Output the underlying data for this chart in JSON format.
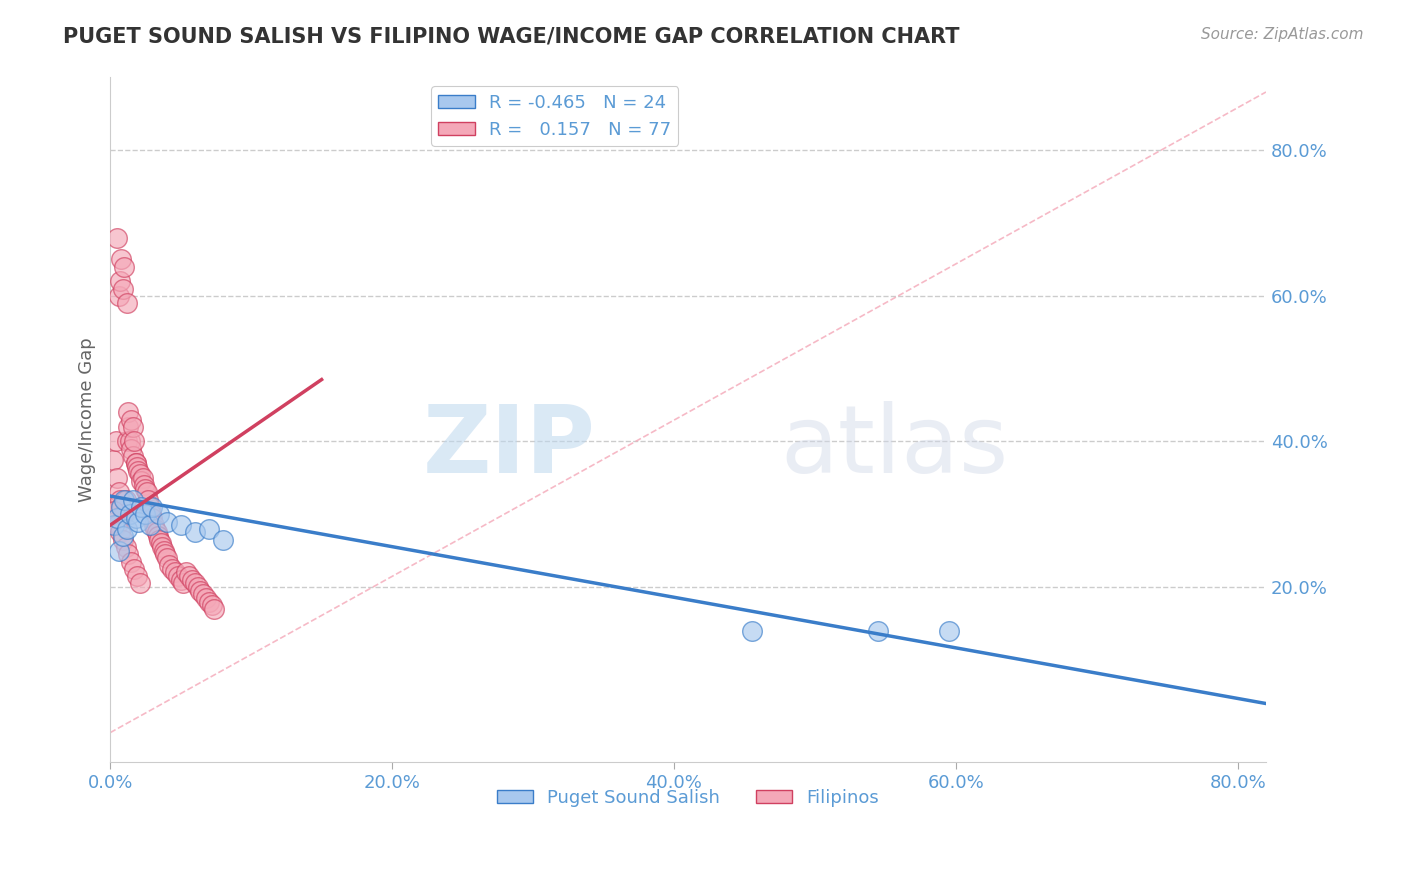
{
  "title": "PUGET SOUND SALISH VS FILIPINO WAGE/INCOME GAP CORRELATION CHART",
  "source": "Source: ZipAtlas.com",
  "ylabel": "Wage/Income Gap",
  "xlabel_ticks": [
    0.0,
    0.2,
    0.4,
    0.6,
    0.8
  ],
  "ylabel_ticks": [
    0.2,
    0.4,
    0.6,
    0.8
  ],
  "xlim": [
    0.0,
    0.82
  ],
  "ylim": [
    -0.04,
    0.9
  ],
  "blue_R": -0.465,
  "blue_N": 24,
  "pink_R": 0.157,
  "pink_N": 77,
  "legend_label_blue": "Puget Sound Salish",
  "legend_label_pink": "Filipinos",
  "blue_color": "#A8C8EE",
  "pink_color": "#F4A8B8",
  "blue_line_color": "#3A7DC9",
  "pink_line_color": "#D04060",
  "ref_line_color": "#F4A8B8",
  "title_color": "#333333",
  "source_color": "#999999",
  "axis_color": "#5B9BD5",
  "grid_color": "#CCCCCC",
  "watermark_zip": "ZIP",
  "watermark_atlas": "atlas",
  "blue_line_x0": 0.0,
  "blue_line_y0": 0.325,
  "blue_line_x1": 0.82,
  "blue_line_y1": 0.04,
  "pink_line_x0": 0.0,
  "pink_line_y0": 0.285,
  "pink_line_x1": 0.15,
  "pink_line_y1": 0.485,
  "ref_line_x0": 0.0,
  "ref_line_y0": 0.0,
  "ref_line_x1": 0.82,
  "ref_line_y1": 0.88,
  "blue_scatter_x": [
    0.003,
    0.005,
    0.006,
    0.008,
    0.009,
    0.01,
    0.012,
    0.014,
    0.016,
    0.018,
    0.02,
    0.022,
    0.025,
    0.028,
    0.03,
    0.035,
    0.04,
    0.05,
    0.06,
    0.07,
    0.08,
    0.455,
    0.545,
    0.595
  ],
  "blue_scatter_y": [
    0.285,
    0.295,
    0.25,
    0.31,
    0.27,
    0.32,
    0.28,
    0.3,
    0.32,
    0.295,
    0.29,
    0.31,
    0.3,
    0.285,
    0.31,
    0.3,
    0.29,
    0.285,
    0.275,
    0.28,
    0.265,
    0.14,
    0.14,
    0.14
  ],
  "pink_scatter_x": [
    0.002,
    0.003,
    0.004,
    0.005,
    0.005,
    0.006,
    0.006,
    0.007,
    0.007,
    0.008,
    0.008,
    0.009,
    0.009,
    0.01,
    0.01,
    0.011,
    0.012,
    0.012,
    0.013,
    0.013,
    0.014,
    0.015,
    0.015,
    0.016,
    0.016,
    0.017,
    0.018,
    0.018,
    0.019,
    0.02,
    0.021,
    0.022,
    0.023,
    0.024,
    0.025,
    0.026,
    0.027,
    0.028,
    0.029,
    0.03,
    0.031,
    0.032,
    0.033,
    0.034,
    0.035,
    0.036,
    0.037,
    0.038,
    0.039,
    0.04,
    0.042,
    0.044,
    0.046,
    0.048,
    0.05,
    0.052,
    0.054,
    0.056,
    0.058,
    0.06,
    0.062,
    0.064,
    0.066,
    0.068,
    0.07,
    0.072,
    0.074,
    0.003,
    0.005,
    0.007,
    0.009,
    0.011,
    0.013,
    0.015,
    0.017,
    0.019,
    0.021
  ],
  "pink_scatter_y": [
    0.375,
    0.29,
    0.4,
    0.35,
    0.68,
    0.33,
    0.6,
    0.32,
    0.62,
    0.31,
    0.65,
    0.3,
    0.61,
    0.3,
    0.64,
    0.32,
    0.59,
    0.4,
    0.42,
    0.44,
    0.4,
    0.43,
    0.39,
    0.42,
    0.38,
    0.4,
    0.37,
    0.37,
    0.365,
    0.36,
    0.355,
    0.345,
    0.35,
    0.34,
    0.335,
    0.33,
    0.32,
    0.31,
    0.3,
    0.295,
    0.285,
    0.28,
    0.275,
    0.27,
    0.265,
    0.26,
    0.255,
    0.25,
    0.245,
    0.24,
    0.23,
    0.225,
    0.22,
    0.215,
    0.21,
    0.205,
    0.22,
    0.215,
    0.21,
    0.205,
    0.2,
    0.195,
    0.19,
    0.185,
    0.18,
    0.175,
    0.17,
    0.305,
    0.285,
    0.275,
    0.265,
    0.255,
    0.245,
    0.235,
    0.225,
    0.215,
    0.205
  ]
}
